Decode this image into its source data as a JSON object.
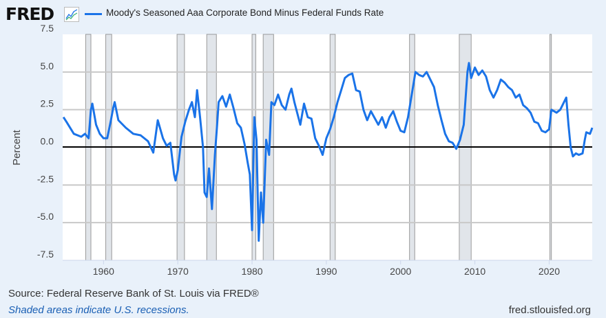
{
  "header": {
    "logo": "FRED",
    "logo_icon": "line-chart-icon",
    "series_title": "Moody's Seasoned Aaa Corporate Bond Minus Federal Funds Rate"
  },
  "footer": {
    "source": "Source: Federal Reserve Bank of St. Louis via FRED®",
    "note": "Shaded areas indicate U.S. recessions.",
    "site": "fred.stlouisfed.org"
  },
  "chart_data": {
    "type": "line",
    "title": "",
    "xlabel": "",
    "ylabel": "Percent",
    "xlim": [
      1954.5,
      2025.8
    ],
    "ylim": [
      -7.5,
      7.5
    ],
    "grid": true,
    "line_color": "#1a73e8",
    "recession_color": "#e1e5ea",
    "x_ticks": [
      "1960",
      "1970",
      "1980",
      "1990",
      "2000",
      "2010",
      "2020"
    ],
    "y_ticks": [
      "7.5",
      "5.0",
      "2.5",
      "0.0",
      "-2.5",
      "-5.0",
      "-7.5"
    ],
    "recessions": [
      [
        1957.6,
        1958.3
      ],
      [
        1960.3,
        1961.1
      ],
      [
        1969.9,
        1970.9
      ],
      [
        1973.9,
        1975.2
      ],
      [
        1980.0,
        1980.5
      ],
      [
        1981.5,
        1982.9
      ],
      [
        1990.5,
        1991.2
      ],
      [
        2001.2,
        2001.9
      ],
      [
        2007.9,
        2009.5
      ],
      [
        2020.1,
        2020.3
      ]
    ],
    "series": [
      {
        "x": [
          1954.6,
          1955,
          1956,
          1957,
          1957.5,
          1958,
          1958.3,
          1958.5,
          1959,
          1959.5,
          1960,
          1960.5,
          1961,
          1961.3,
          1961.5,
          1962,
          1963,
          1964,
          1965,
          1966,
          1966.7,
          1967.3,
          1968,
          1968.5,
          1969,
          1969.5,
          1969.7,
          1970,
          1970.5,
          1971,
          1971.5,
          1971.9,
          1972.3,
          1972.6,
          1973,
          1973.4,
          1973.6,
          1973.9,
          1974.2,
          1974.6,
          1975,
          1975.3,
          1975.5,
          1976,
          1976.5,
          1977,
          1977.5,
          1978,
          1978.5,
          1979,
          1979.4,
          1979.7,
          1980.0,
          1980.3,
          1980.6,
          1980.9,
          1981.2,
          1981.5,
          1981.9,
          1982.3,
          1982.6,
          1983,
          1983.5,
          1984,
          1984.5,
          1985,
          1985.3,
          1985.7,
          1986.5,
          1987,
          1987.5,
          1988,
          1988.5,
          1989,
          1989.5,
          1990,
          1990.5,
          1991,
          1991.5,
          1992,
          1992.5,
          1993,
          1993.5,
          1994,
          1994.5,
          1995,
          1995.5,
          1996,
          1997,
          1997.5,
          1998,
          1998.5,
          1999,
          1999.5,
          2000,
          2000.5,
          2001,
          2001.5,
          2002,
          2002.5,
          2003,
          2003.5,
          2004,
          2004.5,
          2005,
          2005.5,
          2006,
          2006.5,
          2007,
          2007.5,
          2008,
          2008.5,
          2009,
          2009.2,
          2009.5,
          2010,
          2010.5,
          2011,
          2011.5,
          2012,
          2012.5,
          2013,
          2013.5,
          2014,
          2014.5,
          2015,
          2015.5,
          2016,
          2016.5,
          2017,
          2017.5,
          2018,
          2018.5,
          2019,
          2019.5,
          2020,
          2020.3,
          2021,
          2021.5,
          2022,
          2022.3,
          2022.6,
          2022.9,
          2023.2,
          2023.6,
          2024,
          2024.5,
          2024.8,
          2025,
          2025.5,
          2025.8
        ],
        "y": [
          2.0,
          1.7,
          0.9,
          0.7,
          0.9,
          0.6,
          2.5,
          2.9,
          1.5,
          0.9,
          0.6,
          0.6,
          1.8,
          2.6,
          3.0,
          1.8,
          1.3,
          0.9,
          0.8,
          0.4,
          -0.35,
          1.8,
          0.6,
          0.1,
          0.3,
          -1.8,
          -2.2,
          -1.5,
          0.7,
          1.7,
          2.5,
          3.0,
          2.0,
          3.8,
          2.0,
          0.0,
          -3.0,
          -3.3,
          -1.4,
          -4.1,
          -0.5,
          1.5,
          3.0,
          3.4,
          2.7,
          3.5,
          2.6,
          1.6,
          1.3,
          0.2,
          -1.0,
          -1.8,
          -5.5,
          2.0,
          0.5,
          -6.2,
          -3.0,
          -5.0,
          0.5,
          -0.5,
          3.0,
          2.8,
          3.5,
          2.8,
          2.5,
          3.5,
          3.9,
          3.0,
          1.5,
          2.9,
          2.0,
          1.9,
          0.6,
          0.1,
          -0.5,
          0.6,
          1.2,
          2.0,
          3.0,
          3.8,
          4.6,
          4.8,
          4.9,
          3.8,
          3.7,
          2.5,
          1.8,
          2.4,
          1.5,
          2.0,
          1.3,
          2.0,
          2.4,
          1.7,
          1.1,
          1.0,
          2.0,
          3.5,
          5.0,
          4.8,
          4.7,
          5.0,
          4.5,
          4.0,
          2.8,
          1.8,
          0.9,
          0.4,
          0.3,
          -0.1,
          0.5,
          1.5,
          5.0,
          5.6,
          4.6,
          5.3,
          4.8,
          5.1,
          4.7,
          3.8,
          3.3,
          3.8,
          4.5,
          4.3,
          4.0,
          3.8,
          3.3,
          3.5,
          2.8,
          2.6,
          2.3,
          1.7,
          1.6,
          1.1,
          1.0,
          1.2,
          2.5,
          2.3,
          2.5,
          3.0,
          3.3,
          1.5,
          0.0,
          -0.6,
          -0.4,
          -0.5,
          -0.4,
          0.5,
          1.0,
          0.9,
          1.3
        ]
      }
    ]
  }
}
